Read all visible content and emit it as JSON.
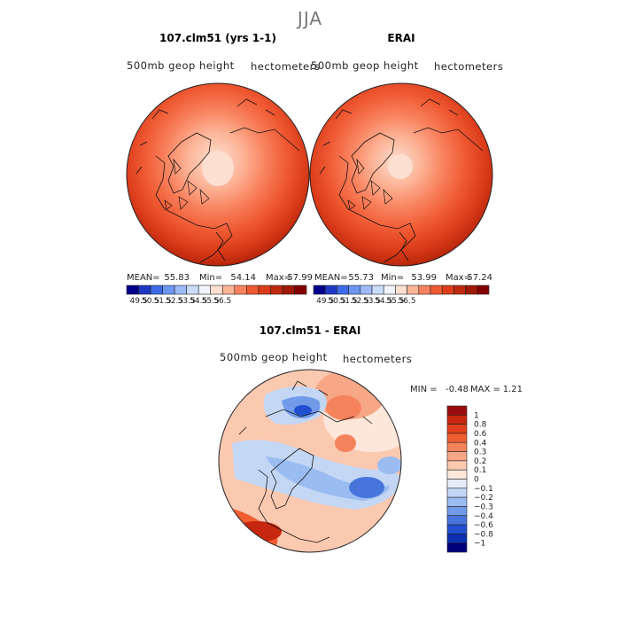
{
  "page_title": "JJA",
  "chart_data": [
    {
      "type": "heatmap",
      "projection": "polar-stereographic",
      "title": "107.clm51 (yrs 1-1)",
      "field_label": "500mb geop height",
      "units": "hectometers",
      "stats": {
        "mean_label": "MEAN=",
        "mean": "55.83",
        "min_label": "Min=",
        "min": "54.14",
        "max_label": "Max=",
        "max": "57.99"
      },
      "colorbar_levels": [
        "49.5",
        "50.5",
        "51.5",
        "52.5",
        "53.5",
        "54.5",
        "55.5",
        "56.5"
      ],
      "colorbar_colors": [
        "#00008b",
        "#1e38c4",
        "#3d6be8",
        "#6b96f2",
        "#9dbcf7",
        "#cadcfb",
        "#f1f4fc",
        "#fde0d2",
        "#fcb497",
        "#f9835f",
        "#ef5a33",
        "#db3c1a",
        "#c02a0e",
        "#9e1a06",
        "#850000"
      ]
    },
    {
      "type": "heatmap",
      "projection": "polar-stereographic",
      "title": "ERAI",
      "field_label": "500mb geop height",
      "units": "hectometers",
      "stats": {
        "mean_label": "MEAN=",
        "mean": "55.73",
        "min_label": "Min=",
        "min": "53.99",
        "max_label": "Max=",
        "max": "57.24"
      },
      "colorbar_levels": [
        "49.5",
        "50.5",
        "51.5",
        "52.5",
        "53.5",
        "54.5",
        "55.5",
        "56.5"
      ],
      "colorbar_colors": [
        "#00008b",
        "#1e38c4",
        "#3d6be8",
        "#6b96f2",
        "#9dbcf7",
        "#cadcfb",
        "#f1f4fc",
        "#fde0d2",
        "#fcb497",
        "#f9835f",
        "#ef5a33",
        "#db3c1a",
        "#c02a0e",
        "#9e1a06",
        "#850000"
      ]
    },
    {
      "type": "heatmap",
      "projection": "polar-stereographic",
      "title": "107.clm51 - ERAI",
      "field_label": "500mb geop height",
      "units": "hectometers",
      "stats": {
        "min_label": "MIN =",
        "min": "-0.48",
        "max_label": "MAX =",
        "max": "1.21"
      },
      "colorbar_levels": [
        "1",
        "0.8",
        "0.6",
        "0.4",
        "0.3",
        "0.2",
        "0.1",
        "0",
        "-0.1",
        "-0.2",
        "-0.3",
        "-0.4",
        "-0.6",
        "-0.8",
        "-1"
      ],
      "colorbar_colors": [
        "#9b0d0d",
        "#c7270f",
        "#e2401c",
        "#f05e31",
        "#f4835c",
        "#f7a686",
        "#fbc8b0",
        "#fde7da",
        "#e4eefb",
        "#c3d7f5",
        "#9bbcf0",
        "#719ae8",
        "#4775dc",
        "#2050d0",
        "#0a2fb0",
        "#00007a"
      ]
    }
  ],
  "colors": {
    "coast": "#111111",
    "text": "#222222",
    "title_gray": "#777777"
  }
}
